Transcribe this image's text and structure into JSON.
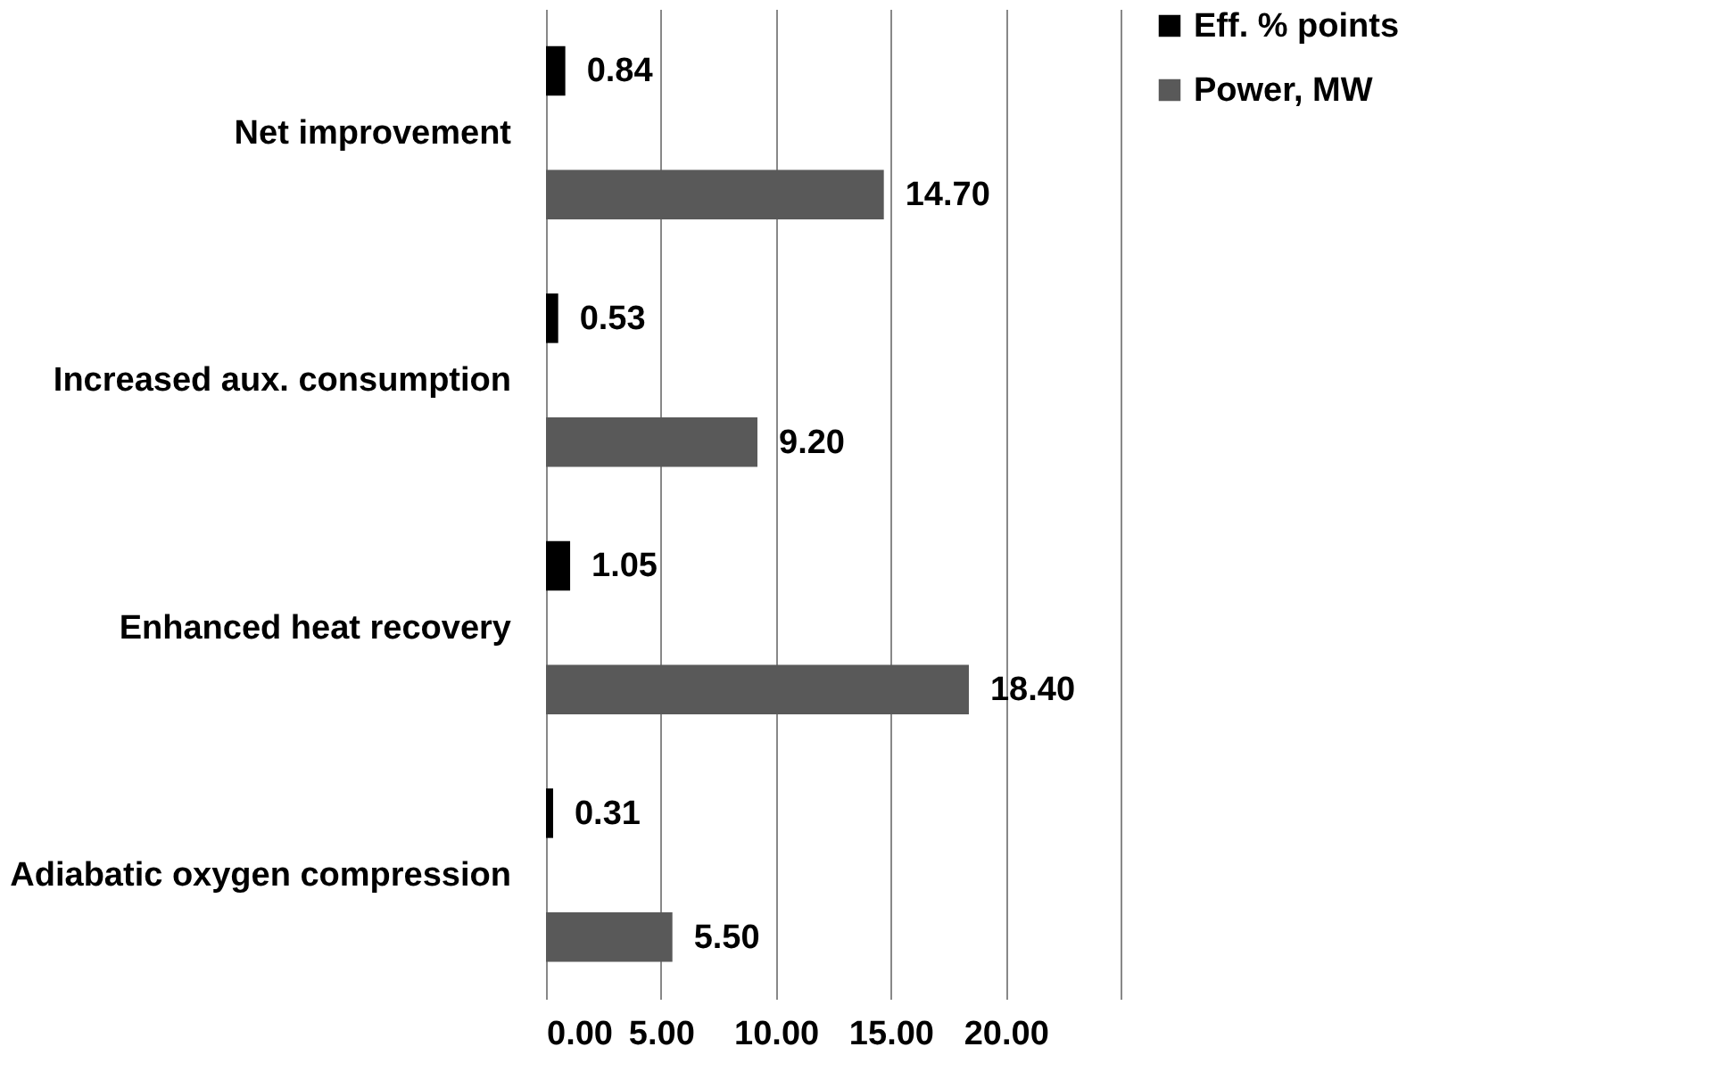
{
  "chart_data": {
    "type": "bar",
    "orientation": "horizontal",
    "categories": [
      "Net improvement",
      "Increased aux. consumption",
      "Enhanced heat recovery",
      "Adiabatic oxygen compression"
    ],
    "series": [
      {
        "name": "Eff. % points",
        "color": "#000000",
        "values": [
          0.84,
          0.53,
          1.05,
          0.31
        ],
        "value_labels": [
          "0.84",
          "0.53",
          "1.05",
          "0.31"
        ]
      },
      {
        "name": "Power, MW",
        "color": "#595959",
        "values": [
          14.7,
          9.2,
          18.4,
          5.5
        ],
        "value_labels": [
          "14.70",
          "9.20",
          "18.40",
          "5.50"
        ]
      }
    ],
    "xlim": [
      0,
      25
    ],
    "xticks": [
      {
        "value": 0,
        "label": "0.00"
      },
      {
        "value": 5,
        "label": "5.00"
      },
      {
        "value": 10,
        "label": "10.00"
      },
      {
        "value": 15,
        "label": "15.00"
      },
      {
        "value": 20,
        "label": "20.00"
      },
      {
        "value": 25,
        "label": null
      }
    ],
    "grid": "x",
    "legend": "right"
  }
}
